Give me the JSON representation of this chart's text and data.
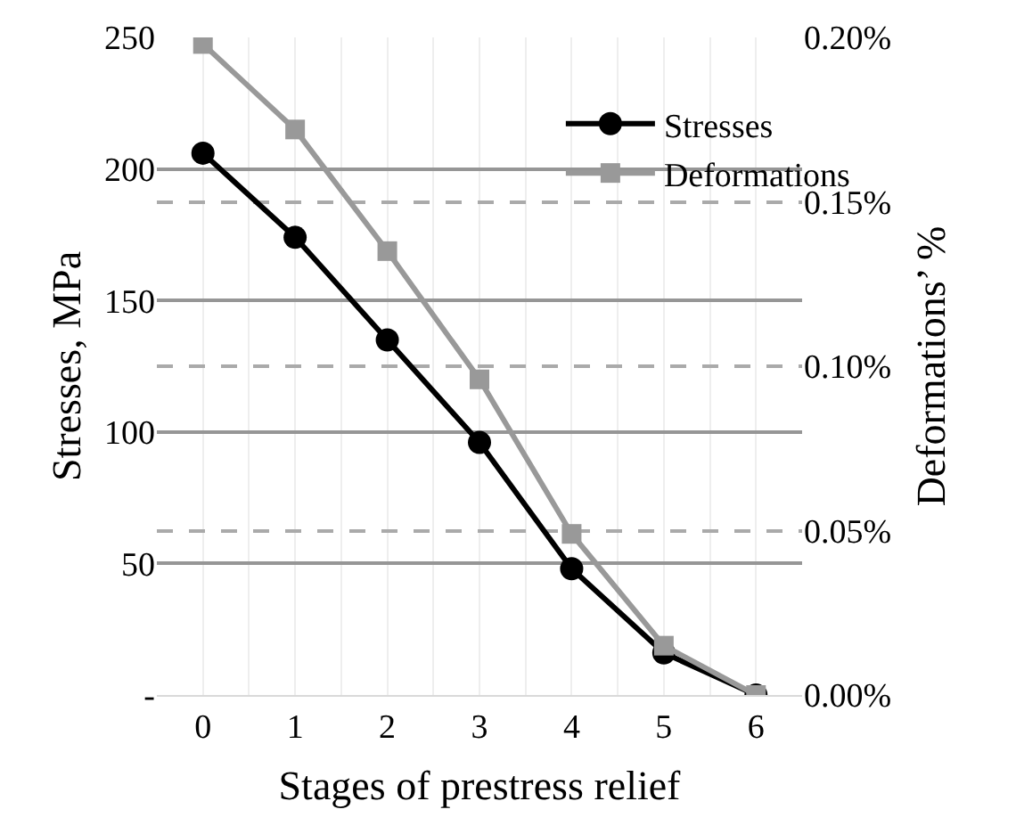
{
  "chart_data": {
    "type": "line",
    "xlabel": "Stages of prestress relief",
    "ylabel": "Stresses, MPa",
    "y2label": "Deformations’ %",
    "x": [
      0,
      1,
      2,
      3,
      4,
      5,
      6
    ],
    "series": [
      {
        "name": "Stresses",
        "color": "#000000",
        "marker": "circle",
        "values": [
          206,
          174,
          135,
          96,
          48,
          16,
          0
        ]
      },
      {
        "name": "Deformations",
        "color": "#999999",
        "marker": "square",
        "axis": "y2",
        "values": [
          0.198,
          0.172,
          0.135,
          0.096,
          0.049,
          0.015,
          0
        ]
      }
    ],
    "xlim": [
      -0.5,
      6.5
    ],
    "xticks": [
      0,
      1,
      2,
      3,
      4,
      5,
      6
    ],
    "ylim": [
      0,
      250
    ],
    "yticks": [
      {
        "value": 0,
        "label": "-"
      },
      50,
      100,
      150,
      200,
      250
    ],
    "y2lim": [
      0,
      0.2
    ],
    "y2ticks": [
      {
        "value": 0,
        "label": "0.00%"
      },
      {
        "value": 0.05,
        "label": "0.05%"
      },
      {
        "value": 0.1,
        "label": "0.10%"
      },
      {
        "value": 0.15,
        "label": "0.15%"
      },
      {
        "value": 0.2,
        "label": "0.20%"
      }
    ],
    "grid": true,
    "legend": "top right",
    "line_style": "solid"
  }
}
